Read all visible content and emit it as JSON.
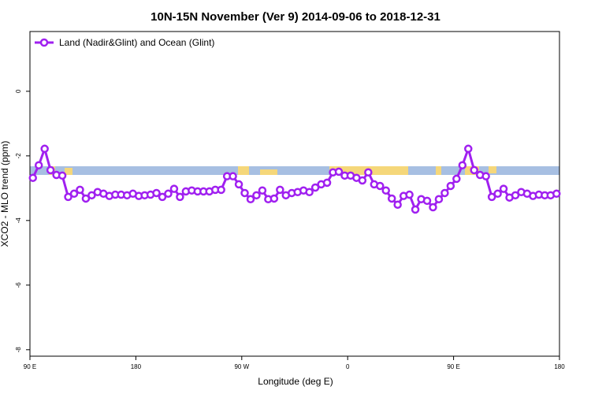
{
  "chart_data": {
    "type": "line",
    "title": "10N-15N November (Ver 9)   2014-09-06 to 2018-12-31",
    "x_label": "Longitude (deg E)",
    "y_label": "XCO2 - MLO trend (ppm)",
    "xlim": [
      90,
      540
    ],
    "xticks": [
      {
        "value": 90,
        "label": "90 E"
      },
      180,
      {
        "value": 270,
        "label": "90 W"
      },
      {
        "value": 360,
        "label": "0"
      },
      {
        "value": 450,
        "label": "90 E"
      },
      180
    ],
    "ylim": [
      -8.2,
      1.85
    ],
    "yticks": [
      0,
      -2,
      -4,
      -6,
      -8
    ],
    "legend": "top-left",
    "series": [
      {
        "name": "Land (Nadir&Glint) and Ocean (Glint)",
        "color": "#a020f0",
        "x": [
          92.5,
          97.5,
          102.5,
          107.5,
          112.5,
          117.5,
          122.5,
          127.5,
          132.5,
          137.5,
          142.5,
          147.5,
          152.5,
          157.5,
          162.5,
          167.5,
          172.5,
          177.5,
          182.5,
          187.5,
          192.5,
          197.5,
          202.5,
          207.5,
          212.5,
          217.5,
          222.5,
          227.5,
          232.5,
          237.5,
          242.5,
          247.5,
          252.5,
          257.5,
          262.5,
          267.5,
          272.5,
          277.5,
          282.5,
          287.5,
          292.5,
          297.5,
          302.5,
          307.5,
          312.5,
          317.5,
          322.5,
          327.5,
          332.5,
          337.5,
          342.5,
          347.5,
          352.5,
          357.5,
          362.5,
          367.5,
          372.5,
          377.5,
          382.5,
          387.5,
          392.5,
          397.5,
          402.5,
          407.5,
          412.5,
          417.5,
          422.5,
          427.5,
          432.5,
          437.5,
          442.5,
          447.5,
          452.5,
          457.5,
          462.5,
          467.5,
          472.5,
          477.5,
          482.5,
          487.5,
          492.5,
          497.5,
          502.5,
          507.5,
          512.5,
          517.5,
          522.5,
          527.5,
          532.5,
          537.5
        ],
        "values": [
          -2.68,
          -2.29,
          -1.78,
          -2.44,
          -2.59,
          -2.61,
          -3.27,
          -3.17,
          -3.05,
          -3.32,
          -3.22,
          -3.12,
          -3.17,
          -3.24,
          -3.2,
          -3.2,
          -3.22,
          -3.17,
          -3.24,
          -3.22,
          -3.2,
          -3.15,
          -3.27,
          -3.17,
          -3.02,
          -3.27,
          -3.1,
          -3.07,
          -3.1,
          -3.1,
          -3.1,
          -3.05,
          -3.05,
          -2.63,
          -2.63,
          -2.88,
          -3.15,
          -3.34,
          -3.22,
          -3.07,
          -3.34,
          -3.32,
          -3.05,
          -3.22,
          -3.15,
          -3.12,
          -3.07,
          -3.12,
          -2.98,
          -2.88,
          -2.83,
          -2.51,
          -2.49,
          -2.61,
          -2.61,
          -2.68,
          -2.76,
          -2.51,
          -2.88,
          -2.93,
          -3.07,
          -3.32,
          -3.51,
          -3.24,
          -3.2,
          -3.66,
          -3.34,
          -3.39,
          -3.59,
          -3.34,
          -3.15,
          -2.93,
          -2.71,
          -2.29,
          -1.78,
          -2.44,
          -2.59,
          -2.63,
          -3.27,
          -3.17,
          -3.02,
          -3.29,
          -3.22,
          -3.12,
          -3.17,
          -3.24,
          -3.2,
          -3.22,
          -3.22,
          -3.17
        ]
      }
    ]
  }
}
